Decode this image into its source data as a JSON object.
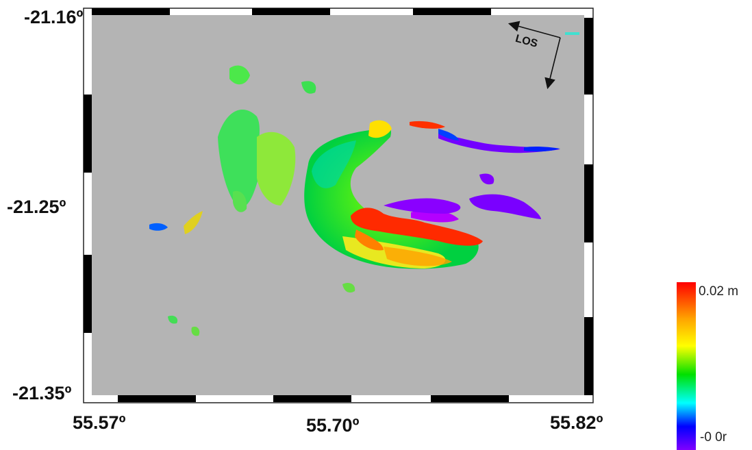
{
  "map": {
    "latitude_labels": [
      "-21.16º",
      "-21.25º",
      "-21.35º"
    ],
    "longitude_labels": [
      "55.57º",
      "55.70º",
      "55.82º"
    ],
    "los_label": "LOS",
    "background_color": "#b4b4b4"
  },
  "colorbar": {
    "max_label": "0.02 m",
    "min_label": "-0 0r",
    "colors": [
      "#ff0000",
      "#ffa500",
      "#ffff00",
      "#00e000",
      "#00ffff",
      "#0000ff",
      "#8000ff"
    ]
  }
}
